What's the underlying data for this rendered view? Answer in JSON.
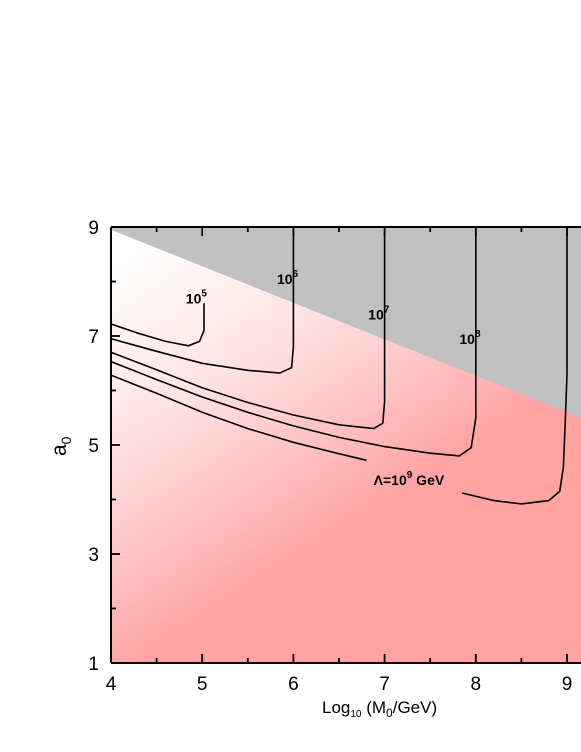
{
  "chart_data": {
    "type": "contour",
    "xlabel": {
      "base": "Log",
      "sub1": "10",
      "paren_open": " (M",
      "sub2": "0",
      "rest": "/GeV)"
    },
    "ylabel": {
      "base": "a",
      "sub": "0"
    },
    "xlim": [
      4,
      9.15
    ],
    "ylim": [
      1,
      9
    ],
    "x_ticks": [
      "4",
      "5",
      "6",
      "7",
      "8",
      "9"
    ],
    "y_ticks": [
      "1",
      "3",
      "5",
      "7",
      "9"
    ],
    "colors": {
      "excluded_region": "#c0c0c0",
      "low_region": "#ffa3a3",
      "high_region": "#ffffff",
      "contour_line": "#000000"
    },
    "excluded_boundary": [
      [
        4,
        8.95
      ],
      [
        9.15,
        5.5
      ]
    ],
    "contours": [
      {
        "label_base": "10",
        "label_exp": "5",
        "label_at": [
          4.82,
          7.6
        ],
        "points": [
          [
            4,
            7.22
          ],
          [
            4.3,
            7.05
          ],
          [
            4.6,
            6.9
          ],
          [
            4.85,
            6.82
          ],
          [
            4.97,
            6.9
          ],
          [
            5.02,
            7.1
          ],
          [
            5.02,
            7.6
          ]
        ]
      },
      {
        "label_base": "10",
        "label_exp": "6",
        "label_at": [
          5.82,
          7.95
        ],
        "points": [
          [
            4,
            6.95
          ],
          [
            4.5,
            6.72
          ],
          [
            5.0,
            6.5
          ],
          [
            5.5,
            6.37
          ],
          [
            5.85,
            6.32
          ],
          [
            5.98,
            6.42
          ],
          [
            6.0,
            6.8
          ],
          [
            6.0,
            8.95
          ]
        ]
      },
      {
        "label_base": "10",
        "label_exp": "7",
        "label_at": [
          6.82,
          7.3
        ],
        "points": [
          [
            4,
            6.7
          ],
          [
            4.5,
            6.38
          ],
          [
            5.0,
            6.05
          ],
          [
            5.5,
            5.78
          ],
          [
            6.0,
            5.55
          ],
          [
            6.5,
            5.37
          ],
          [
            6.88,
            5.3
          ],
          [
            6.98,
            5.4
          ],
          [
            7.0,
            5.8
          ],
          [
            7.0,
            8.95
          ]
        ]
      },
      {
        "label_base": "10",
        "label_exp": "8",
        "label_at": [
          7.82,
          6.85
        ],
        "points": [
          [
            4,
            6.53
          ],
          [
            4.5,
            6.2
          ],
          [
            5.0,
            5.88
          ],
          [
            5.5,
            5.6
          ],
          [
            6.0,
            5.35
          ],
          [
            6.5,
            5.14
          ],
          [
            7.0,
            4.97
          ],
          [
            7.5,
            4.85
          ],
          [
            7.82,
            4.8
          ],
          [
            7.95,
            4.95
          ],
          [
            8.0,
            5.5
          ],
          [
            8.0,
            8.95
          ]
        ]
      },
      {
        "label_base": "Λ=10",
        "label_exp": "9",
        "label_suffix": " GeV",
        "label_at": [
          6.88,
          4.27
        ],
        "points_left": [
          [
            4,
            6.28
          ],
          [
            4.5,
            5.95
          ],
          [
            5.0,
            5.6
          ],
          [
            5.5,
            5.3
          ],
          [
            6.0,
            5.05
          ],
          [
            6.4,
            4.88
          ],
          [
            6.8,
            4.72
          ]
        ],
        "points_right": [
          [
            7.85,
            4.12
          ],
          [
            8.2,
            3.98
          ],
          [
            8.5,
            3.92
          ],
          [
            8.8,
            3.98
          ],
          [
            8.92,
            4.15
          ],
          [
            8.96,
            4.6
          ],
          [
            8.98,
            5.4
          ],
          [
            9.0,
            6.3
          ],
          [
            9.0,
            8.95
          ]
        ]
      }
    ]
  }
}
